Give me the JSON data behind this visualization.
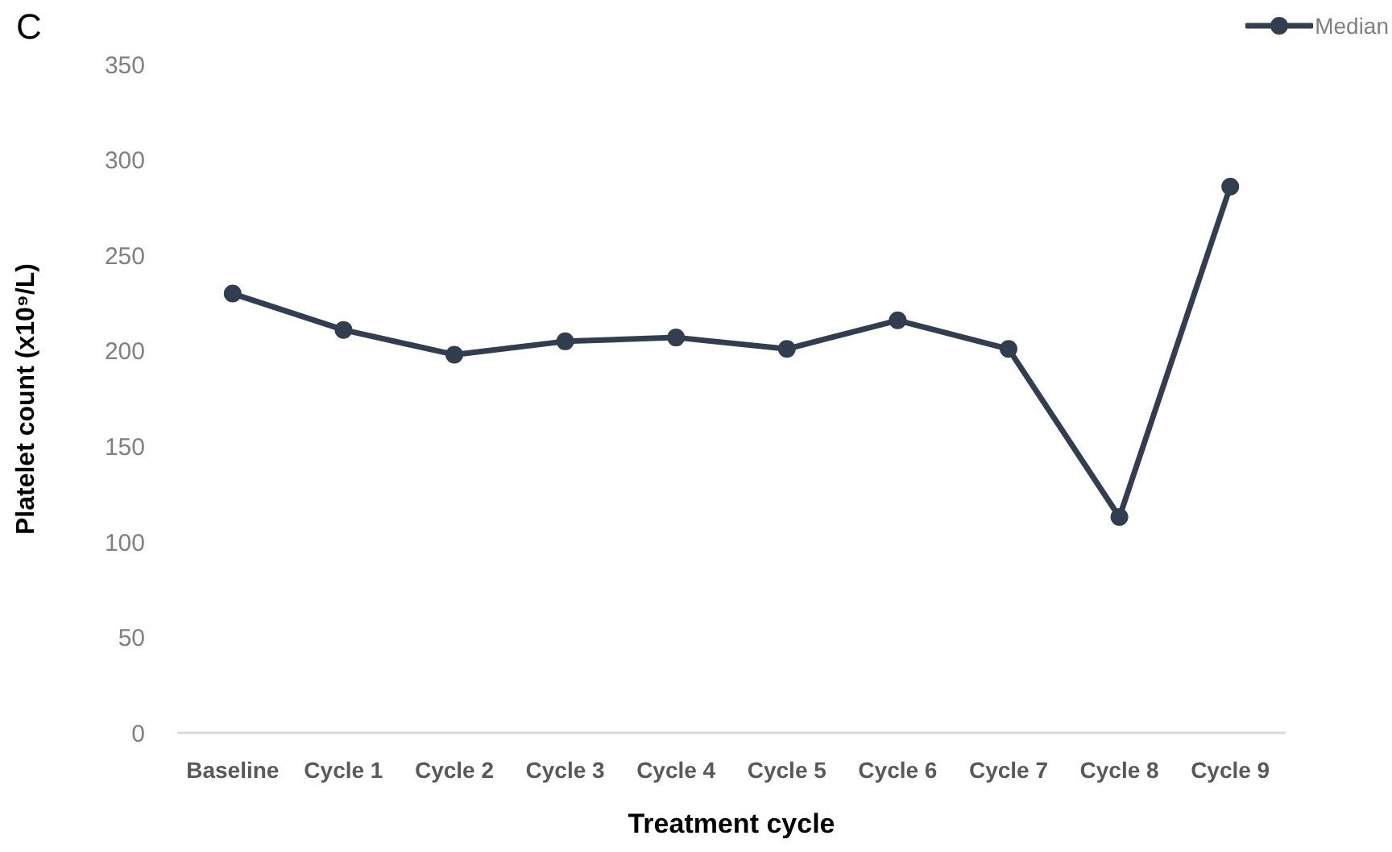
{
  "chart_data": {
    "type": "line",
    "title": "C",
    "xlabel": "Treatment cycle",
    "ylabel": "Platelet count (x10⁹/L)",
    "categories": [
      "Baseline",
      "Cycle 1",
      "Cycle 2",
      "Cycle 3",
      "Cycle 4",
      "Cycle 5",
      "Cycle 6",
      "Cycle 7",
      "Cycle 8",
      "Cycle 9"
    ],
    "series": [
      {
        "name": "Median",
        "color": "#323e4f",
        "values": [
          230,
          211,
          198,
          205,
          207,
          201,
          216,
          201,
          113,
          286
        ]
      }
    ],
    "ylim": [
      0,
      350
    ],
    "yticks": [
      0,
      50,
      100,
      150,
      200,
      250,
      300,
      350
    ],
    "grid": false,
    "legend": "top right",
    "marker": "circle",
    "line_style": "solid"
  }
}
